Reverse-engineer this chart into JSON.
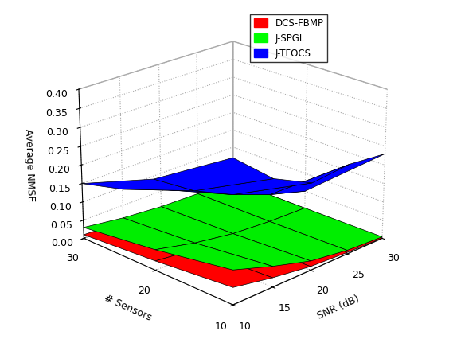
{
  "snr_values": [
    10,
    15,
    20,
    25,
    30
  ],
  "sensor_values": [
    10,
    20,
    30
  ],
  "xlabel": "SNR (dB)",
  "ylabel": "# Sensors",
  "zlabel": "Average NMSE",
  "zlim": [
    0,
    0.4
  ],
  "zticks": [
    0,
    0.05,
    0.1,
    0.15,
    0.2,
    0.25,
    0.3,
    0.35,
    0.4
  ],
  "snr_ticks": [
    10,
    15,
    20,
    25,
    30
  ],
  "sensor_ticks": [
    10,
    20,
    30
  ],
  "legend_labels": [
    "DCS-FBMP",
    "J-SPGL",
    "J-TFOCS"
  ],
  "legend_colors": [
    "#FF0000",
    "#00FF00",
    "#0000FF"
  ],
  "dcs_fbmp": [
    [
      0.045,
      0.025,
      0.01,
      0.004,
      0.001
    ],
    [
      0.025,
      0.012,
      0.005,
      0.002,
      0.001
    ],
    [
      0.01,
      0.005,
      0.002,
      0.001,
      0.0005
    ]
  ],
  "j_spgl": [
    [
      0.09,
      0.055,
      0.025,
      0.01,
      0.004
    ],
    [
      0.055,
      0.03,
      0.013,
      0.005,
      0.002
    ],
    [
      0.03,
      0.015,
      0.006,
      0.003,
      0.001
    ]
  ],
  "j_tfocs": [
    [
      0.37,
      0.28,
      0.23,
      0.24,
      0.23
    ],
    [
      0.24,
      0.17,
      0.12,
      0.08,
      0.05
    ],
    [
      0.15,
      0.095,
      0.055,
      0.03,
      0.015
    ]
  ],
  "view_elev": 22,
  "view_azim": -135,
  "background_color": "#ffffff"
}
